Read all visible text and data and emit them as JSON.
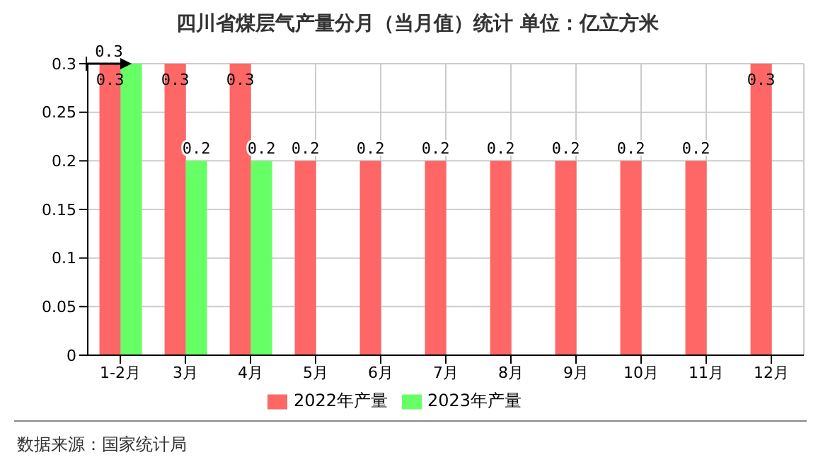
{
  "chart_data": {
    "type": "bar",
    "title": "四川省煤层气产量分月（当月值）统计  单位：亿立方米",
    "categories": [
      "1-2月",
      "3月",
      "4月",
      "5月",
      "6月",
      "7月",
      "8月",
      "9月",
      "10月",
      "11月",
      "12月"
    ],
    "series": [
      {
        "name": "2022年产量",
        "color": "#ff6666",
        "values": [
          0.3,
          0.3,
          0.3,
          0.2,
          0.2,
          0.2,
          0.2,
          0.2,
          0.2,
          0.2,
          0.3
        ],
        "value_labels": [
          "0.3",
          "0.3",
          "0.3",
          "0.2",
          "0.2",
          "0.2",
          "0.2",
          "0.2",
          "0.2",
          "0.2",
          "0.3"
        ]
      },
      {
        "name": "2023年产量",
        "color": "#66ff66",
        "values": [
          0.3,
          0.2,
          0.2,
          null,
          null,
          null,
          null,
          null,
          null,
          null,
          null
        ],
        "value_labels": [
          null,
          "0.2",
          "0.2",
          null,
          null,
          null,
          null,
          null,
          null,
          null,
          null
        ]
      }
    ],
    "ylim": [
      0,
      0.3
    ],
    "yticks": [
      0,
      0.05,
      0.1,
      0.15,
      0.2,
      0.25,
      0.3
    ],
    "grid": true,
    "legend": "bottom",
    "annotations": [
      {
        "text": "0.3",
        "x": "1-2月",
        "y": 0.3
      },
      "数据来源：国家统计局"
    ]
  }
}
